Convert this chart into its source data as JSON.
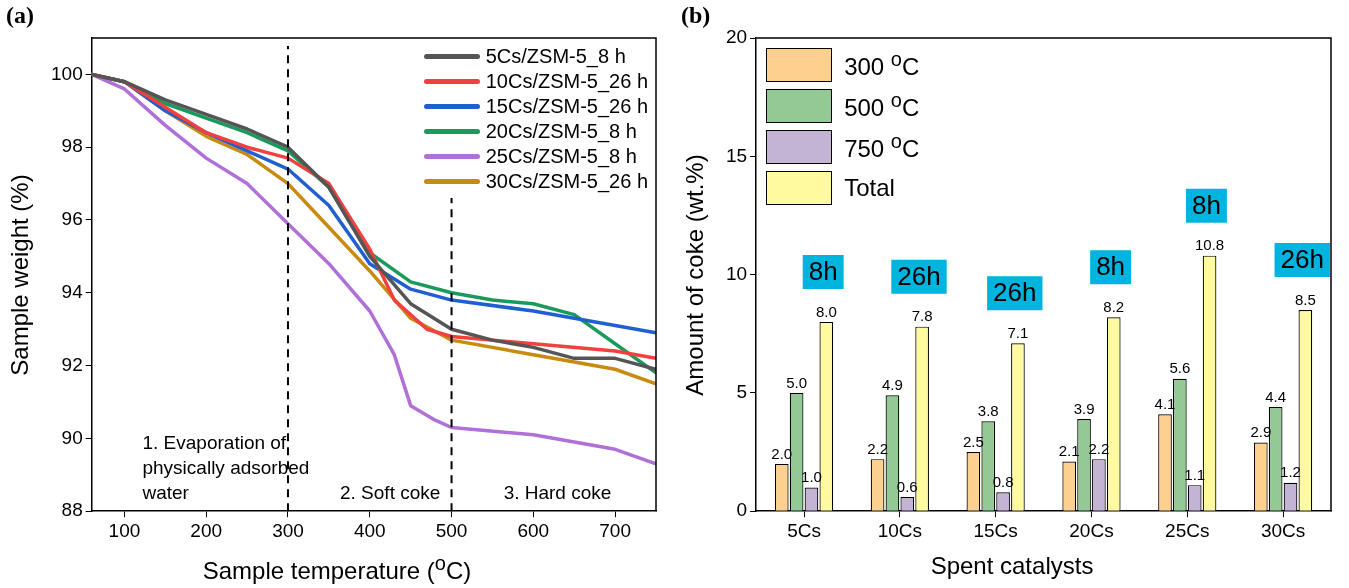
{
  "chart_data": [
    {
      "type": "line",
      "title": "(a)",
      "xlabel": "Sample temperature ($^{o}$C)",
      "ylabel": "Sample weight (%)",
      "xlim": [
        60,
        750
      ],
      "ylim": [
        88,
        101
      ],
      "xticks": [
        100,
        200,
        300,
        400,
        500,
        600,
        700
      ],
      "yticks": [
        88,
        90,
        92,
        94,
        96,
        98,
        100
      ],
      "grid": false,
      "legend": "top right",
      "marker": "none",
      "line_style": "solid",
      "series": [
        {
          "name": "5Cs/ZSM-5_8 h",
          "color": "#555555",
          "x": [
            60,
            100,
            150,
            200,
            250,
            300,
            350,
            400,
            450,
            500,
            550,
            600,
            650,
            700,
            750
          ],
          "values": [
            100,
            99.8,
            99.3,
            98.9,
            98.5,
            98,
            96.9,
            95,
            93.7,
            93,
            92.7,
            92.5,
            92.2,
            92.2,
            91.9
          ]
        },
        {
          "name": "10Cs/ZSM-5_26 h",
          "color": "#f04040",
          "x": [
            60,
            100,
            150,
            200,
            250,
            300,
            350,
            400,
            430,
            470,
            500,
            600,
            700,
            750
          ],
          "values": [
            100,
            99.8,
            99.1,
            98.4,
            98,
            97.7,
            97,
            95.2,
            93.8,
            93,
            92.8,
            92.6,
            92.4,
            92.2
          ]
        },
        {
          "name": "15Cs/ZSM-5_26 h",
          "color": "#1f5fd0",
          "x": [
            60,
            100,
            150,
            200,
            250,
            300,
            350,
            400,
            450,
            500,
            600,
            700,
            750
          ],
          "values": [
            100,
            99.8,
            99,
            98.4,
            97.9,
            97.4,
            96.4,
            94.8,
            94.1,
            93.8,
            93.5,
            93.1,
            92.9
          ]
        },
        {
          "name": "20Cs/ZSM-5_8 h",
          "color": "#1a9a5a",
          "x": [
            60,
            100,
            150,
            200,
            250,
            300,
            350,
            400,
            450,
            500,
            550,
            600,
            650,
            700,
            750
          ],
          "values": [
            100,
            99.8,
            99.2,
            98.8,
            98.4,
            97.9,
            96.9,
            95.1,
            94.3,
            94,
            93.8,
            93.7,
            93.4,
            92.6,
            91.8
          ]
        },
        {
          "name": "25Cs/ZSM-5_8 h",
          "color": "#b070d8",
          "x": [
            60,
            100,
            150,
            200,
            250,
            300,
            350,
            400,
            430,
            450,
            480,
            500,
            600,
            700,
            750
          ],
          "values": [
            100,
            99.6,
            98.6,
            97.7,
            97,
            95.9,
            94.8,
            93.5,
            92.3,
            90.9,
            90.5,
            90.3,
            90.1,
            89.7,
            89.3
          ]
        },
        {
          "name": "30Cs/ZSM-5_26 h",
          "color": "#c88a10",
          "x": [
            60,
            100,
            150,
            200,
            250,
            300,
            350,
            400,
            450,
            500,
            600,
            700,
            750
          ],
          "values": [
            100,
            99.8,
            99,
            98.3,
            97.8,
            97,
            95.8,
            94.6,
            93.3,
            92.7,
            92.3,
            91.9,
            91.5
          ]
        }
      ],
      "ref_lines": [
        {
          "axis": "x",
          "value": 300,
          "line_style": "dashed",
          "color": "#000000"
        },
        {
          "axis": "x",
          "value": 500,
          "line_style": "dashed",
          "color": "#000000"
        }
      ],
      "annotations": [
        "1. Evaporation of physically adsorbed water",
        "2. Soft coke",
        "3. Hard coke"
      ]
    },
    {
      "type": "bar",
      "title": "(b)",
      "xlabel": "Spent catalysts",
      "ylabel": "Amount of coke (wt.%)",
      "categories": [
        "5Cs",
        "10Cs",
        "15Cs",
        "20Cs",
        "25Cs",
        "30Cs"
      ],
      "ylim": [
        0,
        20
      ],
      "yticks": [
        0,
        5,
        10,
        15,
        20
      ],
      "grid": false,
      "legend": "top left",
      "series": [
        {
          "name": "300 $^{o}$C",
          "color": "#fdd08f",
          "values": [
            2.0,
            2.2,
            2.5,
            2.1,
            4.1,
            2.9
          ],
          "value_labels": [
            "2.0",
            "2.2",
            "2.5",
            "2.1",
            "4.1",
            "2.9"
          ]
        },
        {
          "name": "500 $^{o}$C",
          "color": "#92c994",
          "values": [
            5.0,
            4.9,
            3.8,
            3.9,
            5.6,
            4.4
          ],
          "value_labels": [
            "5.0",
            "4.9",
            "3.8",
            "3.9",
            "5.6",
            "4.4"
          ]
        },
        {
          "name": "750 $^{o}$C",
          "color": "#c3b4d4",
          "values": [
            1.0,
            0.6,
            0.8,
            2.2,
            1.1,
            1.2
          ],
          "value_labels": [
            "1.0",
            "0.6",
            "0.8",
            "2.2",
            "1.1",
            "1.2"
          ]
        },
        {
          "name": "Total",
          "color": "#fffaa0",
          "values": [
            8.0,
            7.8,
            7.1,
            8.2,
            10.8,
            8.5
          ],
          "value_labels": [
            "8.0",
            "7.8",
            "7.1",
            "8.2",
            "10.8",
            "8.5"
          ]
        }
      ],
      "annotations": [
        "8h",
        "26h",
        "26h",
        "8h",
        "8h",
        "26h"
      ]
    }
  ]
}
